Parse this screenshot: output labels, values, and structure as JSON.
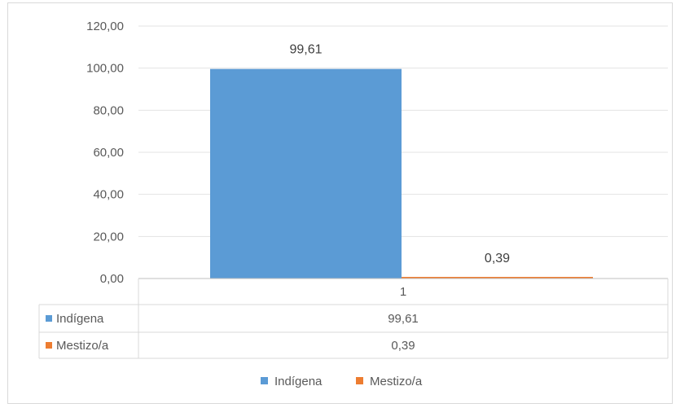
{
  "chart_data": {
    "type": "bar",
    "categories": [
      "1"
    ],
    "series": [
      {
        "name": "Indígena",
        "values": [
          99.61
        ],
        "value_label": "99,61",
        "color": "#5b9bd5"
      },
      {
        "name": "Mestizo/a",
        "values": [
          0.39
        ],
        "value_label": "0,39",
        "color": "#ed7d31"
      }
    ],
    "ylim": [
      0,
      120
    ],
    "y_ticks": [
      {
        "value": 0,
        "label": "0,00"
      },
      {
        "value": 20,
        "label": "20,00"
      },
      {
        "value": 40,
        "label": "40,00"
      },
      {
        "value": 60,
        "label": "60,00"
      },
      {
        "value": 80,
        "label": "80,00"
      },
      {
        "value": 100,
        "label": "100,00"
      },
      {
        "value": 120,
        "label": "120,00"
      }
    ],
    "grid": true,
    "data_table": true,
    "legend": "bottom",
    "legend_entries": [
      "Indígena",
      "Mestizo/a"
    ]
  }
}
